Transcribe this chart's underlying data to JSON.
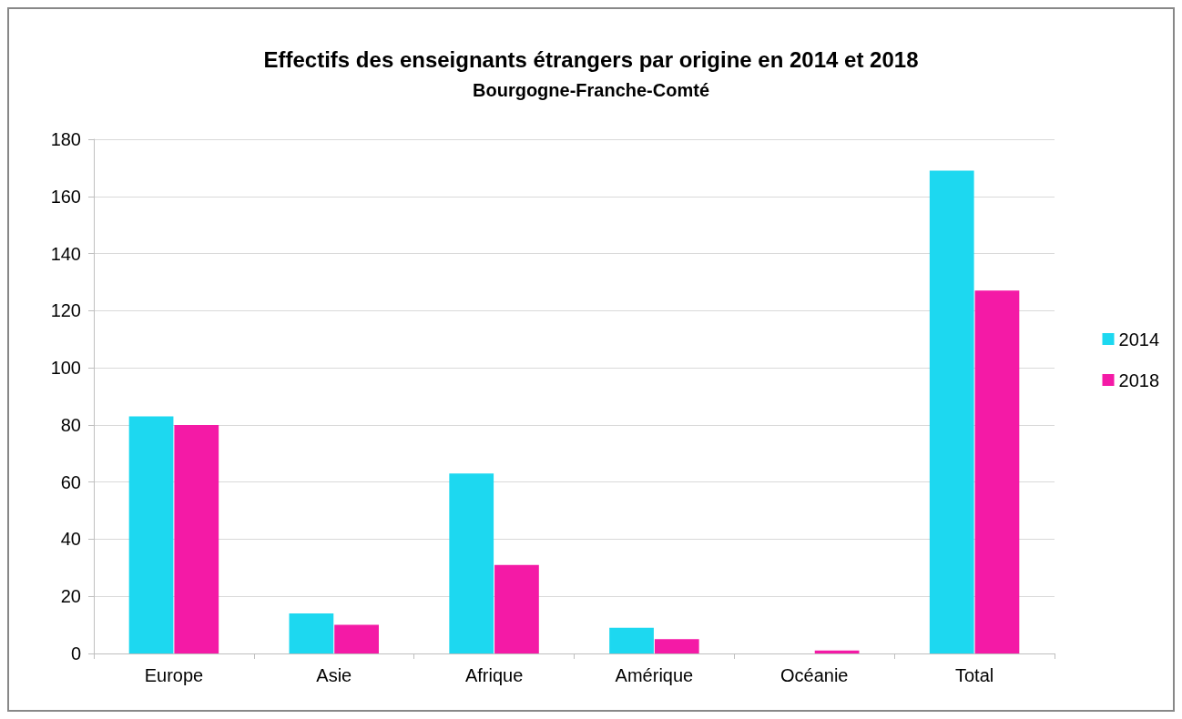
{
  "chart_data": {
    "type": "bar",
    "title": "Effectifs des enseignants étrangers par origine en 2014 et 2018",
    "subtitle": "Bourgogne-Franche-Comté",
    "categories": [
      "Europe",
      "Asie",
      "Afrique",
      "Amérique",
      "Océanie",
      "Total"
    ],
    "series": [
      {
        "name": "2014",
        "color": "#1dd8f0",
        "values": [
          83,
          14,
          63,
          9,
          0,
          169
        ]
      },
      {
        "name": "2018",
        "color": "#f41aa6",
        "values": [
          80,
          10,
          31,
          5,
          1,
          127
        ]
      }
    ],
    "ylim": [
      0,
      180
    ],
    "yticks": [
      0,
      20,
      40,
      60,
      80,
      100,
      120,
      140,
      160,
      180
    ],
    "grid": "y",
    "legend": "right"
  }
}
